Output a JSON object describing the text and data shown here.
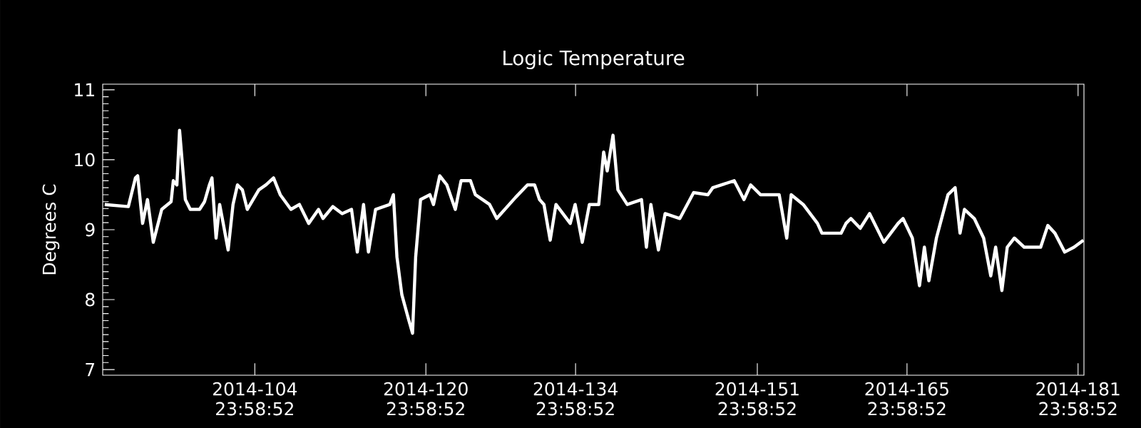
{
  "chart_data": {
    "type": "line",
    "title": "Logic Temperature",
    "ylabel": "Degrees C",
    "color": "#ffffff",
    "x": [
      "2014-03-31T23:00",
      "2014-04-03T04:00",
      "2014-04-03T20:00",
      "2014-04-04T01:00",
      "2014-04-04T12:00",
      "2014-04-04T23:00",
      "2014-04-05T12:00",
      "2014-04-06T07:00",
      "2014-04-07T04:00",
      "2014-04-07T09:00",
      "2014-04-07T17:00",
      "2014-04-07T23:00",
      "2014-04-08T12:00",
      "2014-04-08T23:00",
      "2014-04-09T20:00",
      "2014-04-10T07:00",
      "2014-04-10T18:00",
      "2014-04-10T23:45",
      "2014-04-11T09:00",
      "2014-04-11T17:00",
      "2014-04-12T01:00",
      "2014-04-12T12:00",
      "2014-04-12T23:00",
      "2014-04-13T09:00",
      "2014-04-13T20:00",
      "2014-04-14T07:00",
      "2014-04-15T09:00",
      "2014-04-16T01:00",
      "2014-04-16T18:00",
      "2014-04-17T09:00",
      "2014-04-18T09:00",
      "2014-04-19T04:00",
      "2014-04-20T01:00",
      "2014-04-20T23:00",
      "2014-04-21T09:00",
      "2014-04-22T07:00",
      "2014-04-23T04:00",
      "2014-04-24T01:00",
      "2014-04-24T14:00",
      "2014-04-25T04:00",
      "2014-04-25T15:00",
      "2014-04-26T07:00",
      "2014-04-27T15:00",
      "2014-04-27T23:00",
      "2014-04-28T07:00",
      "2014-04-28T18:00",
      "2014-04-29T09:00",
      "2014-04-29T18:00",
      "2014-04-30T01:00",
      "2014-04-30T12:00",
      "2014-05-01T09:00",
      "2014-05-01T17:00",
      "2014-05-02T07:00",
      "2014-05-02T23:00",
      "2014-05-03T18:00",
      "2014-05-04T07:00",
      "2014-05-05T04:00",
      "2014-05-05T15:00",
      "2014-05-06T23:00",
      "2014-05-07T15:00",
      "2014-05-09T09:00",
      "2014-05-10T12:00",
      "2014-05-11T04:00",
      "2014-05-11T15:00",
      "2014-05-12T01:00",
      "2014-05-12T15:00",
      "2014-05-13T04:00",
      "2014-05-14T12:00",
      "2014-05-14T23:00",
      "2014-05-15T15:00",
      "2014-05-16T07:00",
      "2014-05-17T04:00",
      "2014-05-17T15:00",
      "2014-05-17T23:00",
      "2014-05-18T12:00",
      "2014-05-18T23:00",
      "2014-05-19T20:00",
      "2014-05-21T04:00",
      "2014-05-21T15:00",
      "2014-05-22T01:00",
      "2014-05-22T18:00",
      "2014-05-23T09:00",
      "2014-05-24T18:00",
      "2014-05-26T01:00",
      "2014-05-27T09:00",
      "2014-05-27T20:00",
      "2014-05-29T20:00",
      "2014-05-30T18:00",
      "2014-05-31T09:00",
      "2014-06-01T07:00",
      "2014-06-03T01:00",
      "2014-06-03T18:00",
      "2014-06-04T04:00",
      "2014-06-05T07:00",
      "2014-06-06T15:00",
      "2014-06-07T01:00",
      "2014-06-08T20:00",
      "2014-06-09T07:00",
      "2014-06-09T18:00",
      "2014-06-10T15:00",
      "2014-06-11T12:00",
      "2014-06-12T20:00",
      "2014-06-14T04:00",
      "2014-06-14T15:00",
      "2014-06-15T12:00",
      "2014-06-16T04:00",
      "2014-06-16T15:00",
      "2014-06-17T01:00",
      "2014-06-17T18:00",
      "2014-06-18T20:00",
      "2014-06-19T12:00",
      "2014-06-19T23:00",
      "2014-06-20T09:00",
      "2014-06-21T07:00",
      "2014-06-22T04:00",
      "2014-06-22T20:00",
      "2014-06-23T07:00",
      "2014-06-23T21:00",
      "2014-06-24T09:00",
      "2014-06-25T01:00",
      "2014-06-25T23:00",
      "2014-06-27T12:00",
      "2014-06-28T04:00",
      "2014-06-28T20:00",
      "2014-06-29T18:00",
      "2014-06-30T15:00",
      "2014-07-01T12:00"
    ],
    "values": [
      9.36,
      9.33,
      9.74,
      9.77,
      9.09,
      9.43,
      8.82,
      9.29,
      9.4,
      9.7,
      9.64,
      10.42,
      9.43,
      9.29,
      9.29,
      9.4,
      9.64,
      9.74,
      8.88,
      9.36,
      9.09,
      8.71,
      9.36,
      9.64,
      9.57,
      9.29,
      9.57,
      9.64,
      9.74,
      9.5,
      9.29,
      9.36,
      9.09,
      9.29,
      9.16,
      9.33,
      9.23,
      9.29,
      8.68,
      9.36,
      8.68,
      9.29,
      9.36,
      9.5,
      8.61,
      8.07,
      7.72,
      7.52,
      8.61,
      9.43,
      9.5,
      9.36,
      9.77,
      9.64,
      9.29,
      9.7,
      9.7,
      9.5,
      9.36,
      9.16,
      9.46,
      9.64,
      9.64,
      9.43,
      9.36,
      8.85,
      9.36,
      9.09,
      9.36,
      8.82,
      9.36,
      9.36,
      10.11,
      9.84,
      10.35,
      9.57,
      9.36,
      9.43,
      8.75,
      9.36,
      8.71,
      9.23,
      9.16,
      9.53,
      9.5,
      9.6,
      9.7,
      9.43,
      9.64,
      9.5,
      9.5,
      8.88,
      9.5,
      9.36,
      9.09,
      8.95,
      8.95,
      9.09,
      9.16,
      9.02,
      9.23,
      8.82,
      9.09,
      9.16,
      8.88,
      8.2,
      8.75,
      8.27,
      8.88,
      9.5,
      9.6,
      8.95,
      9.29,
      9.16,
      8.88,
      8.34,
      8.75,
      8.13,
      8.75,
      8.88,
      8.75,
      8.75,
      9.06,
      8.95,
      8.68,
      8.75,
      8.85
    ],
    "xlim": [
      "2014-03-31T18:29",
      "2014-07-01T13:12"
    ],
    "ylim": [
      6.92,
      11.08
    ],
    "xticks": [
      {
        "value": "2014-04-14T23:58",
        "label": "2014-104 23:58:52"
      },
      {
        "value": "2014-04-30T23:58",
        "label": "2014-120 23:58:52"
      },
      {
        "value": "2014-05-14T23:58",
        "label": "2014-134 23:58:52"
      },
      {
        "value": "2014-05-31T23:58",
        "label": "2014-151 23:58:52"
      },
      {
        "value": "2014-06-14T23:58",
        "label": "2014-165 23:58:52"
      },
      {
        "value": "2014-06-30T23:58",
        "label": "2014-181 23:58:52"
      }
    ],
    "yticks": [
      7,
      8,
      9,
      10,
      11
    ]
  }
}
